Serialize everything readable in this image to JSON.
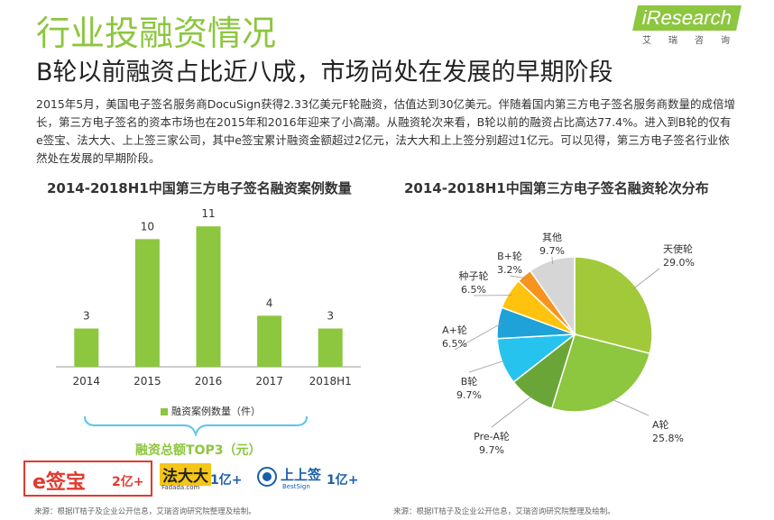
{
  "header": {
    "title": "行业投融资情况",
    "subtitle": "B轮以前融资占比近八成，市场尚处在发展的早期阶段",
    "logo_main": "iResearch",
    "logo_sub": "艾瑞咨询"
  },
  "intro": "2015年5月，美国电子签名服务商DocuSign获得2.33亿美元F轮融资，估值达到30亿美元。伴随着国内第三方电子签名服务商数量的成倍增长，第三方电子签名的资本市场也在2015年和2016年迎来了小高潮。从融资轮次来看，B轮以前的融资占比高达77.4%。进入到B轮的仅有e签宝、法大大、上上签三家公司，其中e签宝累计融资金额超过2亿元，法大大和上上签分别超过1亿元。可以见得，第三方电子签名行业依然处在发展的早期阶段。",
  "chart_data": [
    {
      "type": "bar",
      "title": "2014-2018H1中国第三方电子签名融资案例数量",
      "categories": [
        "2014",
        "2015",
        "2016",
        "2017",
        "2018H1"
      ],
      "series": [
        {
          "name": "融资案例数量（件）",
          "values": [
            3,
            10,
            11,
            4,
            3
          ]
        }
      ],
      "ylim": [
        0,
        12
      ],
      "legend": "bottom",
      "grid": false,
      "color": "#8dc63f"
    },
    {
      "type": "pie",
      "title": "2014-2018H1中国第三方电子签名融资轮次分布",
      "slices": [
        {
          "label": "天使轮",
          "value": 29.0,
          "display": "29.0%",
          "color": "#a2c93a"
        },
        {
          "label": "A轮",
          "value": 25.8,
          "display": "25.8%",
          "color": "#8dc63f"
        },
        {
          "label": "Pre-A轮",
          "value": 9.7,
          "display": "9.7%",
          "color": "#6aa637"
        },
        {
          "label": "B轮",
          "value": 9.7,
          "display": "9.7%",
          "color": "#26c3ef"
        },
        {
          "label": "A+轮",
          "value": 6.5,
          "display": "6.5%",
          "color": "#1ea2d8"
        },
        {
          "label": "种子轮",
          "value": 6.5,
          "display": "6.5%",
          "color": "#ffc20e"
        },
        {
          "label": "B+轮",
          "value": 3.2,
          "display": "3.2%",
          "color": "#f7941d"
        },
        {
          "label": "其他",
          "value": 9.7,
          "display": "9.7%",
          "color": "#d6d6d6"
        }
      ]
    }
  ],
  "top3": {
    "title": "融资总额TOP3（元）",
    "items": [
      {
        "brand": "e签宝",
        "amount": "2亿+",
        "color": "#e03a2e"
      },
      {
        "brand": "法大大",
        "brand_sub": "Fadada.com",
        "amount": "1亿+",
        "color": "#1a5fa8"
      },
      {
        "brand": "上上签",
        "brand_sub": "BestSign",
        "amount": "1亿+",
        "color": "#1a5fa8"
      }
    ]
  },
  "sources": {
    "left": "来源：根据IT桔子及企业公开信息，艾瑞咨询研究院整理及绘制。",
    "right": "来源：根据IT桔子及企业公开信息，艾瑞咨询研究院整理及绘制。"
  }
}
